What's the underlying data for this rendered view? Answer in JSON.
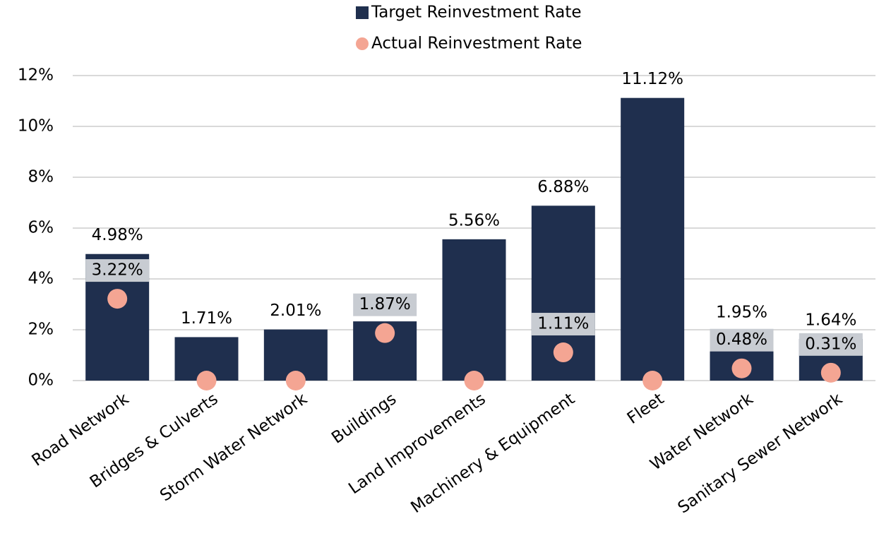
{
  "chart_data": {
    "type": "bar",
    "categories": [
      "Road Network",
      "Bridges & Culverts",
      "Storm Water Network",
      "Buildings",
      "Land Improvements",
      "Machinery & Equipment",
      "Fleet",
      "Water Network",
      "Sanitary Sewer Network"
    ],
    "series": [
      {
        "name": "Target Reinvestment Rate",
        "type": "bar",
        "color": "#1f2f4e",
        "values": [
          4.98,
          1.71,
          2.01,
          2.33,
          5.56,
          6.88,
          11.12,
          1.95,
          1.64
        ],
        "value_labels": [
          "4.98%",
          "1.71%",
          "2.01%",
          null,
          "5.56%",
          "6.88%",
          "11.12%",
          "1.95%",
          "1.64%"
        ]
      },
      {
        "name": "Actual Reinvestment Rate",
        "type": "scatter",
        "color": "#f4a593",
        "values": [
          3.22,
          0,
          0,
          1.87,
          0,
          1.11,
          0,
          0.48,
          0.31
        ],
        "value_labels": [
          "3.22%",
          null,
          null,
          "1.87%",
          null,
          "1.11%",
          null,
          "0.48%",
          "0.31%"
        ]
      }
    ],
    "ylim": [
      0,
      12
    ],
    "yticks": [
      {
        "value": 0,
        "label": "0%"
      },
      {
        "value": 2,
        "label": "2%"
      },
      {
        "value": 4,
        "label": "4%"
      },
      {
        "value": 6,
        "label": "6%"
      },
      {
        "value": 8,
        "label": "8%"
      },
      {
        "value": 10,
        "label": "10%"
      },
      {
        "value": 12,
        "label": "12%"
      }
    ],
    "grid": true,
    "legend": "top"
  }
}
